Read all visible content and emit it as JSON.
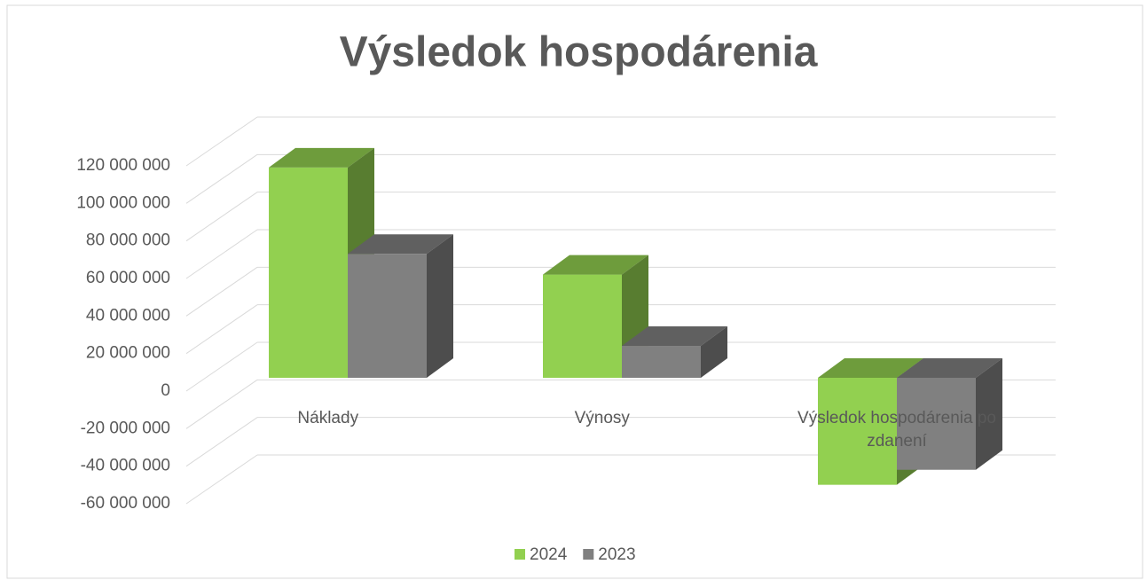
{
  "chart_data": {
    "type": "bar3d",
    "title": "Výsledok hospodárenia",
    "categories": [
      "Náklady",
      "Výnosy",
      "Výsledok hospodárenia po zdanení"
    ],
    "series": [
      {
        "name": "2024",
        "color": "#92d050",
        "values": [
          112000000,
          55000000,
          -57000000
        ]
      },
      {
        "name": "2023",
        "color": "#808080",
        "values": [
          66000000,
          17000000,
          -49000000
        ]
      }
    ],
    "ylim": [
      -60000000,
      120000000
    ],
    "yticks": [
      {
        "value": -60000000,
        "label": "-60 000 000"
      },
      {
        "value": -40000000,
        "label": "-40 000 000"
      },
      {
        "value": -20000000,
        "label": "-20 000 000"
      },
      0,
      {
        "value": 20000000,
        "label": "20 000 000"
      },
      {
        "value": 40000000,
        "label": "40 000 000"
      },
      {
        "value": 60000000,
        "label": "60 000 000"
      },
      {
        "value": 80000000,
        "label": "80 000 000"
      },
      {
        "value": 100000000,
        "label": "100 000 000"
      },
      {
        "value": 120000000,
        "label": "120 000 000"
      }
    ],
    "grid": true,
    "legend": "bottom"
  }
}
